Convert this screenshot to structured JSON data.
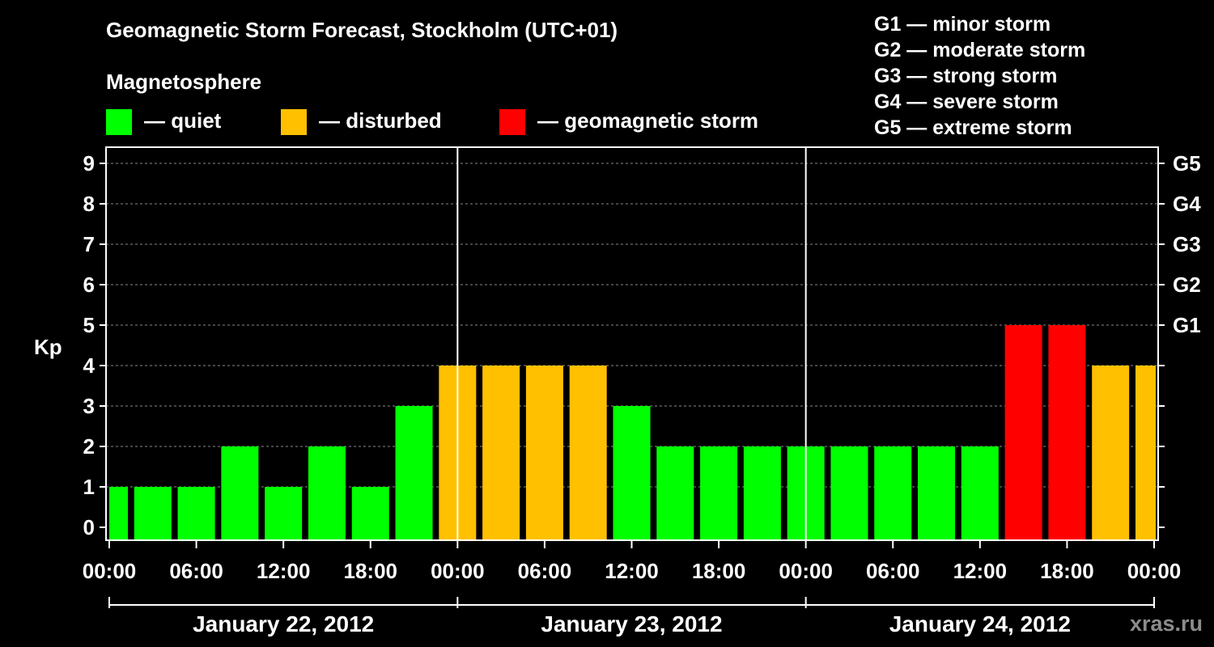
{
  "chart_data": {
    "type": "bar",
    "title": "Geomagnetic Storm Forecast, Stockholm (UTC+01)",
    "subtitle": "Magnetosphere",
    "ylabel": "Kp",
    "ylim": [
      0,
      9
    ],
    "y_ticks": [
      "0",
      "1",
      "2",
      "3",
      "4",
      "5",
      "6",
      "7",
      "8",
      "9"
    ],
    "right_ticks": [
      {
        "kp": 5,
        "label": "G1"
      },
      {
        "kp": 6,
        "label": "G2"
      },
      {
        "kp": 7,
        "label": "G3"
      },
      {
        "kp": 8,
        "label": "G4"
      },
      {
        "kp": 9,
        "label": "G5"
      }
    ],
    "x_tick_labels": [
      "00:00",
      "06:00",
      "12:00",
      "18:00",
      "00:00",
      "06:00",
      "12:00",
      "18:00",
      "00:00",
      "06:00",
      "12:00",
      "18:00",
      "00:00"
    ],
    "days": [
      "January 22, 2012",
      "January 23, 2012",
      "January 24, 2012"
    ],
    "interval_hours": 3,
    "values": [
      1,
      1,
      1,
      2,
      1,
      2,
      1,
      3,
      4,
      4,
      4,
      4,
      3,
      2,
      2,
      2,
      2,
      2,
      2,
      2,
      2,
      5,
      5,
      4,
      4
    ],
    "categories": [
      "quiet",
      "quiet",
      "quiet",
      "quiet",
      "quiet",
      "quiet",
      "quiet",
      "quiet",
      "disturbed",
      "disturbed",
      "disturbed",
      "disturbed",
      "quiet",
      "quiet",
      "quiet",
      "quiet",
      "quiet",
      "quiet",
      "quiet",
      "quiet",
      "quiet",
      "storm",
      "storm",
      "disturbed",
      "disturbed"
    ],
    "colors": {
      "quiet": "#00ff00",
      "disturbed": "#ffc000",
      "storm": "#ff0000"
    },
    "grid": true
  },
  "legend": {
    "quiet": "— quiet",
    "disturbed": "— disturbed",
    "storm": "— geomagnetic storm"
  },
  "g_scale": [
    "G1 — minor storm",
    "G2 — moderate storm",
    "G3 — strong storm",
    "G4 — severe storm",
    "G5 — extreme storm"
  ],
  "watermark": "xras.ru"
}
